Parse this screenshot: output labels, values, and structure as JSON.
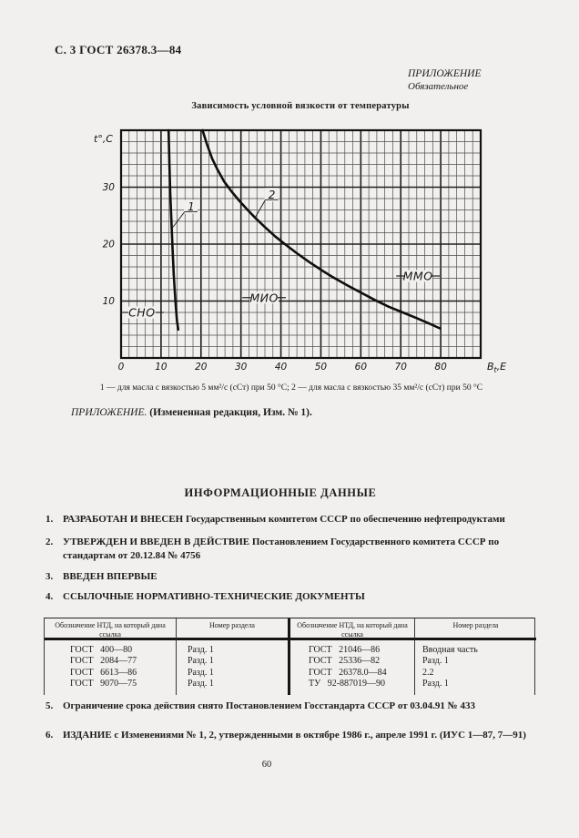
{
  "page": {
    "header_left": "С. 3 ГОСТ 26378.3—84",
    "appendix_label": "ПРИЛОЖЕНИЕ",
    "appendix_sub": "Обязательное",
    "page_number": "60"
  },
  "chart_caption": "1 — для масла с вязкостью 5 мм²/с (сСт) при 50 °С; 2 — для масла с вязкостью 35 мм²/с (сСт) при 50 °С",
  "appendix_note": {
    "lead": "ПРИЛОЖЕНИЕ.",
    "rest": " (Измененная редакция, Изм. № 1)."
  },
  "info": {
    "heading": "ИНФОРМАЦИОННЫЕ ДАННЫЕ",
    "items": [
      {
        "num": "1.",
        "text": "РАЗРАБОТАН И ВНЕСЕН Государственным комитетом СССР по обеспечению нефтепродуктами"
      },
      {
        "num": "2.",
        "text": "УТВЕРЖДЕН И ВВЕДЕН В ДЕЙСТВИЕ Постановлением Государственного комитета СССР по стандартам от 20.12.84 № 4756"
      },
      {
        "num": "3.",
        "text": "ВВЕДЕН ВПЕРВЫЕ"
      },
      {
        "num": "4.",
        "text": "ССЫЛОЧНЫЕ НОРМАТИВНО-ТЕХНИЧЕСКИЕ ДОКУМЕНТЫ"
      },
      {
        "num": "5.",
        "text": "Ограничение срока действия снято Постановлением Госстандарта СССР от 03.04.91 № 433"
      },
      {
        "num": "6.",
        "text": "ИЗДАНИЕ с Изменениями № 1, 2, утвержденными в октябре 1986 г., апреле 1991 г. (ИУС 1—87, 7—91)"
      }
    ]
  },
  "table": {
    "headers": [
      "Обозначение НТД, на который дана ссылка",
      "Номер раздела",
      "Обозначение НТД, на который дана ссылка",
      "Номер раздела"
    ],
    "rows": [
      {
        "c0": "ГОСТ 400—80",
        "c1": "Разд. 1",
        "c2": "ГОСТ 21046—86",
        "c3": "Вводная часть"
      },
      {
        "c0": "ГОСТ 2084—77",
        "c1": "Разд. 1",
        "c2": "ГОСТ 25336—82",
        "c3": "Разд. 1"
      },
      {
        "c0": "ГОСТ 6613—86",
        "c1": "Разд. 1",
        "c2": "ГОСТ 26378.0—84",
        "c3": "2.2"
      },
      {
        "c0": "ГОСТ 9070—75",
        "c1": "Разд. 1",
        "c2": "ТУ 92-887019—90",
        "c3": "Разд. 1"
      }
    ]
  },
  "chart_data": {
    "type": "line",
    "title": "Зависимость условной вязкости от температуры",
    "xlabel": "Вt,Е",
    "xlabel_parts": {
      "base": "В",
      "sub": "t",
      "rest": ",Е"
    },
    "ylabel": "t°,С",
    "xlim": [
      0,
      90
    ],
    "ylim": [
      0,
      40
    ],
    "xticks": [
      0,
      10,
      20,
      30,
      40,
      50,
      60,
      70,
      80
    ],
    "yticks": [
      10,
      20,
      30
    ],
    "grid": {
      "minor_step": 2,
      "major_step": 10,
      "on": true
    },
    "legend_position": "none",
    "series": [
      {
        "name": "1",
        "note": "для масла с вязкостью 5 мм²/с (сСт) при 50 °С",
        "points": [
          [
            11.9,
            40
          ],
          [
            12.1,
            34
          ],
          [
            12.3,
            29
          ],
          [
            12.6,
            24
          ],
          [
            12.9,
            19
          ],
          [
            13.2,
            14.5
          ],
          [
            13.6,
            10
          ],
          [
            14,
            6.5
          ],
          [
            14.3,
            5
          ]
        ]
      },
      {
        "name": "2",
        "note": "для масла с вязкостью 35 мм²/с (сСт) при 50 °С",
        "points": [
          [
            20.4,
            40
          ],
          [
            21.5,
            37.5
          ],
          [
            22.8,
            35
          ],
          [
            24.2,
            33
          ],
          [
            25.8,
            31
          ],
          [
            27.6,
            29.3
          ],
          [
            29.6,
            27.6
          ],
          [
            31.8,
            25.9
          ],
          [
            33.6,
            24.6
          ],
          [
            36,
            23
          ],
          [
            38.5,
            21.4
          ],
          [
            41,
            20
          ],
          [
            44,
            18.4
          ],
          [
            47,
            16.9
          ],
          [
            50,
            15.5
          ],
          [
            53,
            14.2
          ],
          [
            56.5,
            12.8
          ],
          [
            60,
            11.5
          ],
          [
            63.5,
            10.2
          ],
          [
            67,
            9
          ],
          [
            70.5,
            8
          ],
          [
            74,
            7
          ],
          [
            77,
            6.1
          ],
          [
            79.8,
            5.2
          ]
        ]
      }
    ],
    "region_labels": [
      {
        "text": "СНО",
        "x": 5.2,
        "y": 8,
        "dashes": "both"
      },
      {
        "text": "МИО",
        "x": 35.8,
        "y": 10.6,
        "dashes": "both"
      },
      {
        "text": "ММО",
        "x": 74.3,
        "y": 14.4,
        "dashes": "both"
      }
    ],
    "curve_labels": [
      {
        "text": "1",
        "x": 17.3,
        "y": 26.5,
        "to_x": 13,
        "to_y": 23
      },
      {
        "text": "2",
        "x": 37.5,
        "y": 28.6,
        "to_x": 33.5,
        "to_y": 24.6
      }
    ]
  }
}
